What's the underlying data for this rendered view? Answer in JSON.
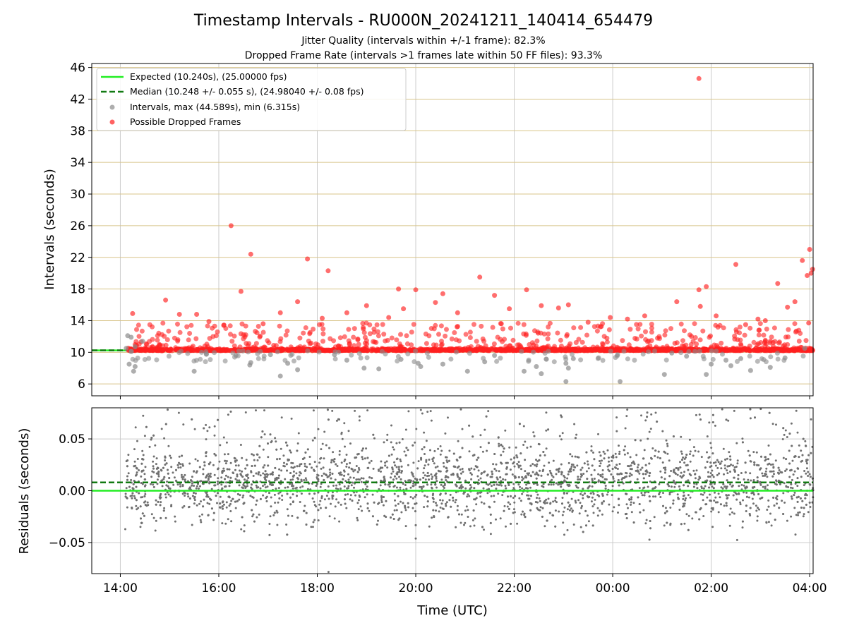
{
  "title": "Timestamp Intervals - RU000N_20241211_140414_654479",
  "subtitle_lines": [
    "Jitter Quality (intervals within +/-1 frame): 82.3%",
    "Dropped Frame Rate (intervals >1 frames late within 50 FF files): 93.3%"
  ],
  "xlabel": "Time (UTC)",
  "x_ticks": [
    "14:00",
    "16:00",
    "18:00",
    "20:00",
    "22:00",
    "00:00",
    "02:00",
    "04:00"
  ],
  "colors": {
    "expected": "#22ee22",
    "median": "#127a12",
    "intervals": "#8c8c8c",
    "dropped": "#ff2020",
    "hgrid_top": "#d8c48a",
    "grid": "#cccccc",
    "residual_points": "#707070"
  },
  "chart_data": [
    {
      "type": "scatter",
      "ylabel": "Intervals (seconds)",
      "x_range_hours": [
        13.42,
        28.07
      ],
      "ylim": [
        4.5,
        46.5
      ],
      "y_ticks": [
        6,
        10,
        14,
        18,
        22,
        26,
        30,
        34,
        38,
        42,
        46
      ],
      "grid": true,
      "legend_position": "top-left",
      "legend": [
        "Expected (10.240s), (25.00000 fps)",
        "Median (10.248 +/- 0.055 s), (24.98040 +/- 0.08 fps)",
        "Intervals, max (44.589s), min (6.315s)",
        "Possible Dropped Frames"
      ],
      "expected_line": 10.24,
      "median_line": 10.248,
      "dropped_outliers": [
        [
          14.25,
          14.9
        ],
        [
          14.92,
          16.6
        ],
        [
          15.2,
          14.8
        ],
        [
          15.55,
          14.8
        ],
        [
          15.8,
          13.9
        ],
        [
          16.1,
          13.4
        ],
        [
          16.25,
          26.0
        ],
        [
          16.45,
          17.7
        ],
        [
          16.65,
          22.4
        ],
        [
          16.9,
          13.6
        ],
        [
          17.25,
          15.0
        ],
        [
          17.6,
          16.4
        ],
        [
          17.8,
          21.8
        ],
        [
          18.1,
          14.3
        ],
        [
          18.22,
          20.3
        ],
        [
          18.6,
          15.0
        ],
        [
          19.0,
          15.9
        ],
        [
          19.45,
          14.4
        ],
        [
          19.65,
          18.0
        ],
        [
          19.75,
          15.5
        ],
        [
          20.0,
          17.9
        ],
        [
          20.4,
          16.3
        ],
        [
          20.55,
          17.4
        ],
        [
          20.85,
          15.0
        ],
        [
          21.3,
          19.5
        ],
        [
          21.6,
          17.2
        ],
        [
          21.9,
          15.5
        ],
        [
          22.25,
          17.9
        ],
        [
          22.55,
          15.9
        ],
        [
          22.9,
          15.6
        ],
        [
          23.1,
          16.0
        ],
        [
          23.5,
          13.8
        ],
        [
          23.95,
          14.4
        ],
        [
          24.3,
          14.2
        ],
        [
          24.65,
          14.6
        ],
        [
          25.3,
          16.4
        ],
        [
          25.6,
          12.0
        ],
        [
          25.75,
          44.6
        ],
        [
          25.78,
          15.8
        ],
        [
          25.9,
          18.3
        ],
        [
          25.75,
          17.9
        ],
        [
          26.1,
          14.6
        ],
        [
          26.5,
          21.1
        ],
        [
          26.7,
          13.5
        ],
        [
          26.95,
          14.2
        ],
        [
          27.1,
          14.0
        ],
        [
          27.35,
          18.7
        ],
        [
          27.55,
          15.7
        ],
        [
          27.7,
          16.4
        ],
        [
          27.85,
          21.6
        ],
        [
          27.95,
          19.7
        ],
        [
          28.0,
          23.0
        ],
        [
          28.03,
          20.0
        ],
        [
          28.06,
          20.5
        ],
        [
          27.98,
          13.7
        ]
      ],
      "intervals_outliers": [
        [
          14.15,
          12.1
        ],
        [
          14.22,
          11.9
        ],
        [
          14.3,
          10.7
        ],
        [
          14.18,
          8.5
        ],
        [
          14.27,
          7.6
        ],
        [
          14.3,
          8.2
        ],
        [
          14.12,
          10.5
        ],
        [
          14.45,
          11.4
        ],
        [
          15.5,
          7.6
        ],
        [
          15.75,
          9.8
        ],
        [
          16.35,
          9.6
        ],
        [
          16.63,
          8.4
        ],
        [
          16.65,
          8.7
        ],
        [
          17.05,
          9.7
        ],
        [
          17.25,
          7.0
        ],
        [
          17.4,
          8.6
        ],
        [
          17.6,
          7.8
        ],
        [
          18.35,
          9.7
        ],
        [
          18.6,
          9.0
        ],
        [
          18.95,
          8.0
        ],
        [
          19.25,
          7.9
        ],
        [
          19.7,
          9.1
        ],
        [
          20.05,
          8.6
        ],
        [
          20.1,
          8.2
        ],
        [
          20.55,
          8.5
        ],
        [
          21.05,
          7.6
        ],
        [
          21.4,
          8.8
        ],
        [
          21.6,
          9.6
        ],
        [
          22.2,
          7.6
        ],
        [
          22.45,
          8.2
        ],
        [
          22.55,
          7.3
        ],
        [
          23.05,
          8.6
        ],
        [
          23.1,
          8.0
        ],
        [
          23.2,
          9.2
        ],
        [
          23.05,
          6.3
        ],
        [
          24.15,
          6.3
        ],
        [
          24.1,
          9.7
        ],
        [
          25.05,
          7.2
        ],
        [
          25.5,
          9.5
        ],
        [
          26.0,
          8.5
        ],
        [
          25.9,
          7.2
        ],
        [
          26.4,
          8.3
        ],
        [
          26.6,
          9.2
        ],
        [
          26.8,
          7.7
        ],
        [
          27.2,
          8.1
        ],
        [
          27.5,
          9.3
        ],
        [
          27.9,
          10.5
        ],
        [
          26.3,
          9.0
        ],
        [
          25.2,
          9.9
        ]
      ]
    },
    {
      "type": "scatter",
      "ylabel": "Residuals (seconds)",
      "x_range_hours": [
        13.42,
        28.07
      ],
      "ylim": [
        -0.08,
        0.08
      ],
      "y_ticks": [
        "0.05",
        "0.00",
        "−0.05"
      ],
      "y_tick_values": [
        0.05,
        0.0,
        -0.05
      ],
      "grid": true,
      "expected_line": 0.0,
      "median_line": 0.008
    }
  ]
}
